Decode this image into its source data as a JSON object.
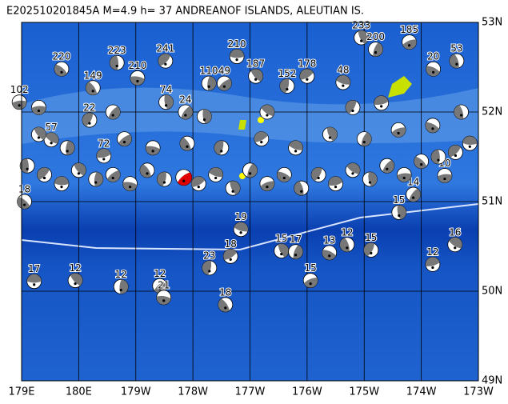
{
  "header": {
    "title": "E202510201845A  M=4.9  h= 37  ANDREANOF ISLANDS, ALEUTIAN IS."
  },
  "map": {
    "lon_range": [
      179,
      187
    ],
    "lat_range": [
      49,
      53
    ],
    "lon_ticks": [
      {
        "value": 179,
        "label": "179E"
      },
      {
        "value": 180,
        "label": "180E"
      },
      {
        "value": 181,
        "label": "179W"
      },
      {
        "value": 182,
        "label": "178W"
      },
      {
        "value": 183,
        "label": "177W"
      },
      {
        "value": 184,
        "label": "176W"
      },
      {
        "value": 185,
        "label": "175W"
      },
      {
        "value": 186,
        "label": "174W"
      },
      {
        "value": 187,
        "label": "173W"
      }
    ],
    "lat_ticks": [
      {
        "value": 49,
        "label": "49N"
      },
      {
        "value": 50,
        "label": "50N"
      },
      {
        "value": 51,
        "label": "51N"
      },
      {
        "value": 52,
        "label": "52N"
      },
      {
        "value": 53,
        "label": "53N"
      }
    ],
    "main_event": {
      "lon": 181.84,
      "lat": 51.27
    },
    "events": [
      {
        "lon": 179.22,
        "lat": 50.11,
        "label": "17"
      },
      {
        "lon": 179.94,
        "lat": 50.12,
        "label": "12"
      },
      {
        "lon": 180.74,
        "lat": 50.05,
        "label": "12"
      },
      {
        "lon": 181.42,
        "lat": 50.06,
        "label": "12"
      },
      {
        "lon": 181.49,
        "lat": 49.93,
        "label": "21"
      },
      {
        "lon": 182.57,
        "lat": 49.85,
        "label": "18"
      },
      {
        "lon": 182.29,
        "lat": 50.26,
        "label": "23"
      },
      {
        "lon": 182.66,
        "lat": 50.39,
        "label": "18"
      },
      {
        "lon": 182.84,
        "lat": 50.69,
        "label": "19"
      },
      {
        "lon": 183.55,
        "lat": 50.45,
        "label": "15"
      },
      {
        "lon": 183.8,
        "lat": 50.44,
        "label": "17"
      },
      {
        "lon": 184.06,
        "lat": 50.12,
        "label": "15"
      },
      {
        "lon": 184.39,
        "lat": 50.43,
        "label": "13"
      },
      {
        "lon": 184.7,
        "lat": 50.52,
        "label": "12"
      },
      {
        "lon": 185.12,
        "lat": 50.46,
        "label": "15"
      },
      {
        "lon": 186.2,
        "lat": 50.3,
        "label": "12"
      },
      {
        "lon": 186.59,
        "lat": 50.52,
        "label": "16"
      },
      {
        "lon": 185.61,
        "lat": 50.88,
        "label": "15"
      },
      {
        "lon": 185.86,
        "lat": 51.08,
        "label": "14"
      },
      {
        "lon": 178.96,
        "lat": 52.11,
        "label": "102"
      },
      {
        "lon": 179.7,
        "lat": 52.48,
        "label": "220"
      },
      {
        "lon": 180.67,
        "lat": 52.55,
        "label": "223"
      },
      {
        "lon": 181.52,
        "lat": 52.57,
        "label": "241"
      },
      {
        "lon": 182.77,
        "lat": 52.62,
        "label": "210"
      },
      {
        "lon": 183.1,
        "lat": 52.4,
        "label": "187"
      },
      {
        "lon": 182.28,
        "lat": 52.32,
        "label": "110"
      },
      {
        "lon": 182.55,
        "lat": 52.32,
        "label": "49"
      },
      {
        "lon": 181.03,
        "lat": 52.38,
        "label": "210"
      },
      {
        "lon": 180.25,
        "lat": 52.27,
        "label": "149"
      },
      {
        "lon": 183.65,
        "lat": 52.29,
        "label": "152"
      },
      {
        "lon": 184.0,
        "lat": 52.4,
        "label": "178"
      },
      {
        "lon": 184.63,
        "lat": 52.33,
        "label": "48"
      },
      {
        "lon": 184.95,
        "lat": 52.83,
        "label": "233"
      },
      {
        "lon": 185.2,
        "lat": 52.7,
        "label": "200"
      },
      {
        "lon": 185.79,
        "lat": 52.78,
        "label": "185"
      },
      {
        "lon": 186.21,
        "lat": 52.48,
        "label": "20"
      },
      {
        "lon": 186.62,
        "lat": 52.57,
        "label": "53"
      },
      {
        "lon": 180.19,
        "lat": 51.91,
        "label": "22"
      },
      {
        "lon": 180.44,
        "lat": 51.51,
        "label": "72"
      },
      {
        "lon": 179.52,
        "lat": 51.69,
        "label": "57"
      },
      {
        "lon": 181.53,
        "lat": 52.11,
        "label": "74"
      },
      {
        "lon": 181.87,
        "lat": 52.0,
        "label": "24"
      },
      {
        "lon": 186.41,
        "lat": 51.29,
        "label": "10"
      },
      {
        "lon": 179.05,
        "lat": 51.0,
        "label": "18"
      },
      {
        "lon": 179.1,
        "lat": 51.4
      },
      {
        "lon": 179.4,
        "lat": 51.3
      },
      {
        "lon": 179.7,
        "lat": 51.2
      },
      {
        "lon": 180.0,
        "lat": 51.35
      },
      {
        "lon": 180.3,
        "lat": 51.25
      },
      {
        "lon": 180.6,
        "lat": 51.3
      },
      {
        "lon": 180.9,
        "lat": 51.2
      },
      {
        "lon": 181.2,
        "lat": 51.35
      },
      {
        "lon": 181.5,
        "lat": 51.25
      },
      {
        "lon": 182.1,
        "lat": 51.2
      },
      {
        "lon": 182.4,
        "lat": 51.3
      },
      {
        "lon": 182.7,
        "lat": 51.15
      },
      {
        "lon": 183.0,
        "lat": 51.35
      },
      {
        "lon": 183.3,
        "lat": 51.2
      },
      {
        "lon": 183.6,
        "lat": 51.3
      },
      {
        "lon": 183.9,
        "lat": 51.15
      },
      {
        "lon": 184.2,
        "lat": 51.3
      },
      {
        "lon": 184.5,
        "lat": 51.2
      },
      {
        "lon": 184.8,
        "lat": 51.35
      },
      {
        "lon": 185.1,
        "lat": 51.25
      },
      {
        "lon": 185.4,
        "lat": 51.4
      },
      {
        "lon": 185.7,
        "lat": 51.3
      },
      {
        "lon": 186.0,
        "lat": 51.45
      },
      {
        "lon": 186.3,
        "lat": 51.5
      },
      {
        "lon": 186.6,
        "lat": 51.55
      },
      {
        "lon": 186.85,
        "lat": 51.65
      },
      {
        "lon": 179.3,
        "lat": 51.75
      },
      {
        "lon": 179.8,
        "lat": 51.6
      },
      {
        "lon": 180.8,
        "lat": 51.7
      },
      {
        "lon": 181.3,
        "lat": 51.6
      },
      {
        "lon": 181.9,
        "lat": 51.65
      },
      {
        "lon": 182.5,
        "lat": 51.6
      },
      {
        "lon": 183.2,
        "lat": 51.7
      },
      {
        "lon": 183.8,
        "lat": 51.6
      },
      {
        "lon": 184.4,
        "lat": 51.75
      },
      {
        "lon": 185.0,
        "lat": 51.7
      },
      {
        "lon": 185.6,
        "lat": 51.8
      },
      {
        "lon": 186.2,
        "lat": 51.85
      },
      {
        "lon": 186.7,
        "lat": 52.0
      },
      {
        "lon": 184.8,
        "lat": 52.05
      },
      {
        "lon": 185.3,
        "lat": 52.1
      },
      {
        "lon": 183.3,
        "lat": 52.0
      },
      {
        "lon": 182.2,
        "lat": 51.95
      },
      {
        "lon": 180.6,
        "lat": 52.0
      },
      {
        "lon": 179.3,
        "lat": 52.05
      }
    ]
  }
}
